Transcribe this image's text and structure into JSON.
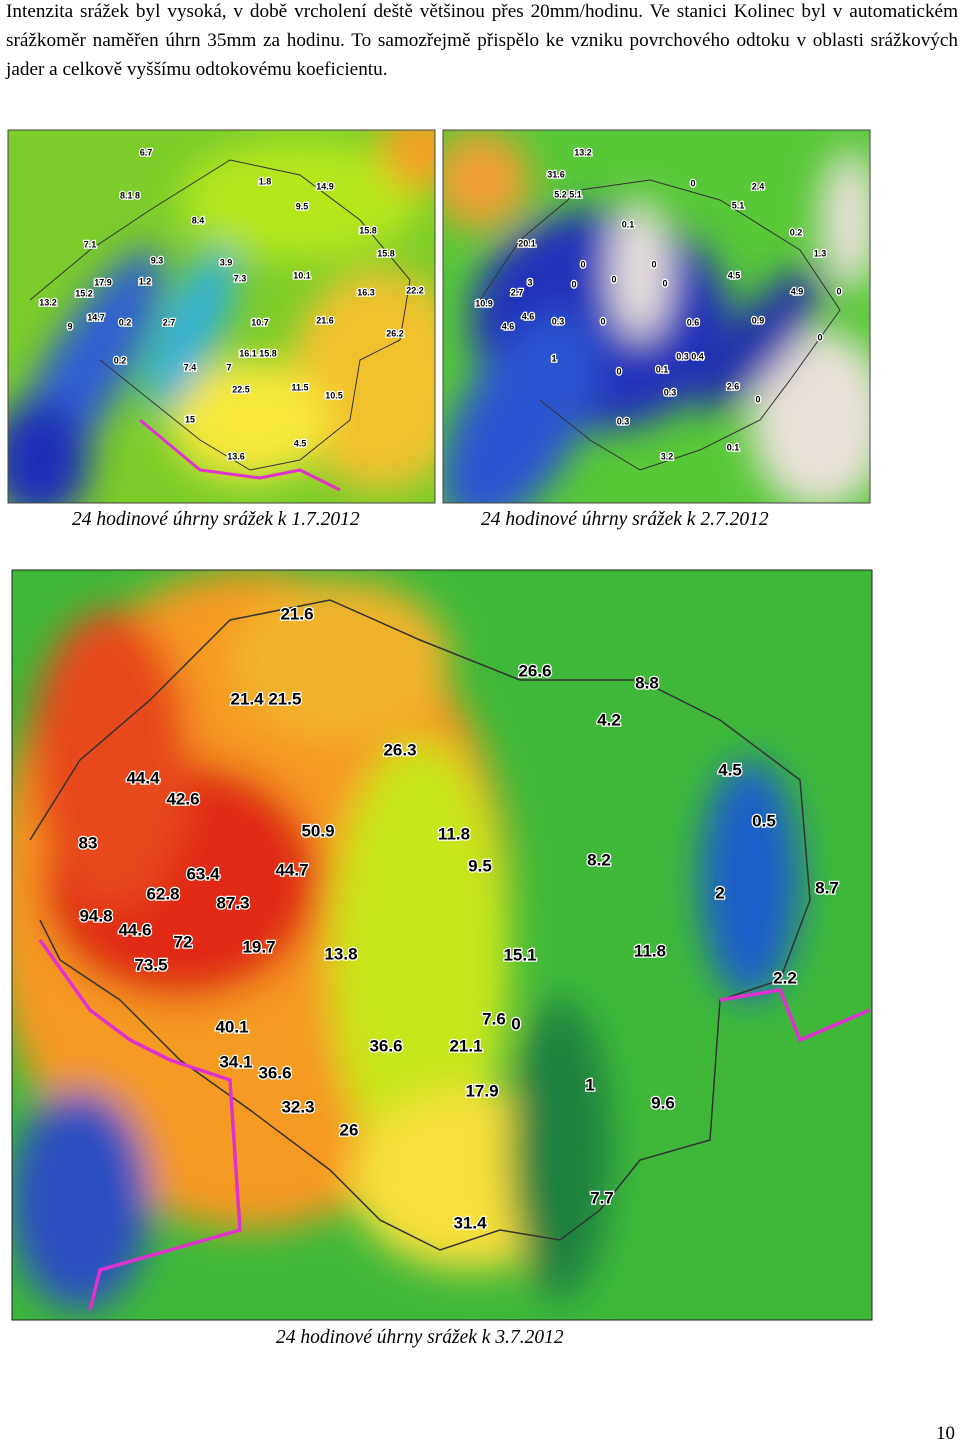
{
  "paragraph": "Intenzita srážek byl vysoká, v době vrcholení deště většinou přes 20mm/hodinu. Ve stanici Kolinec byl v automatickém srážkoměr naměřen úhrn 35mm za hodinu.  To samozřejmě přispělo ke vzniku povrchového odtoku v oblasti srážkových jader a celkově vyššímu odtokovému koeficientu.",
  "maps": [
    {
      "caption": "24 hodinové úhrny srážek k 1.7.2012",
      "labels": [
        "6.7",
        "1.8",
        "14.9",
        "8.1 8",
        "9.5",
        "8.4",
        "15.8",
        "7.1",
        "15.8",
        "9.3",
        "3.9",
        "10.1",
        "7.3",
        "17.9",
        "1.2",
        "16.3",
        "22.2",
        "15.2",
        "13.2",
        "14.7",
        "0.2",
        "2.7",
        "10.7",
        "21.6",
        "9",
        "26.2",
        "16.1 15.8",
        "0.2",
        "7.4",
        "7",
        "22.5",
        "11.5",
        "10.5",
        "15",
        "4.5",
        "13.6"
      ]
    },
    {
      "caption": "24 hodinové úhrny srážek k 2.7.2012",
      "labels": [
        "13.2",
        "31.6",
        "0",
        "2.4",
        "5.2 5.1",
        "5.1",
        "0.1",
        "0.2",
        "20.1",
        "0",
        "0",
        "1.3",
        "0",
        "4.5",
        "3",
        "2.7",
        "0",
        "0",
        "4.9",
        "0",
        "10.9",
        "4.6",
        "0.3",
        "0",
        "0.6",
        "0.9",
        "4.6",
        "0",
        "0.3 0.4",
        "1",
        "0.1",
        "0",
        "2.6",
        "0.3",
        "0",
        "0.3",
        "0.1",
        "3.2"
      ]
    },
    {
      "caption": "24 hodinové úhrny srážek k 3.7.2012",
      "labels": [
        "21.6",
        "26.6",
        "8.8",
        "21.4 21.5",
        "4.2",
        "26.3",
        "44.4",
        "4.5",
        "42.6",
        "0.5",
        "50.9",
        "11.8",
        "83",
        "8.2",
        "9.5",
        "63.4",
        "44.7",
        "8.7",
        "62.8",
        "2",
        "87.3",
        "94.8",
        "44.6",
        "72",
        "19.7",
        "11.8",
        "13.8",
        "15.1",
        "73.5",
        "2.2",
        "7.6",
        "0",
        "40.1",
        "36.6",
        "21.1",
        "34.1",
        "36.6",
        "1",
        "17.9",
        "9.6",
        "32.3",
        "26",
        "7.7",
        "31.4"
      ]
    }
  ],
  "page_number": "10"
}
